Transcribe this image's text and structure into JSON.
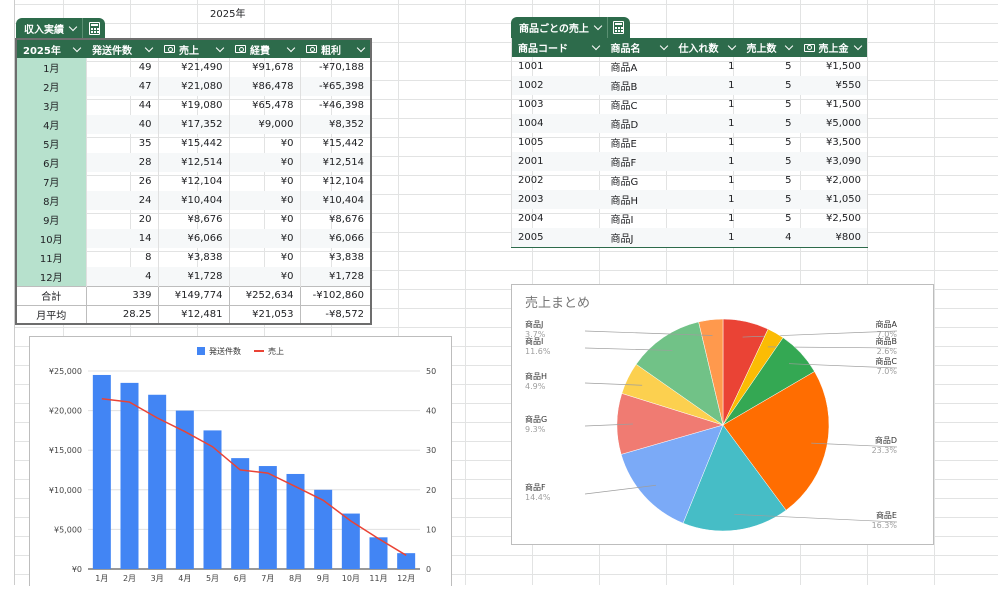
{
  "sheet": {
    "cell_caption": "2025年"
  },
  "table1": {
    "tab_label": "収入実績",
    "headers": [
      "2025年",
      "発送件数",
      "売上",
      "経費",
      "粗利"
    ],
    "rows": [
      [
        "1月",
        "49",
        "¥21,490",
        "¥91,678",
        "-¥70,188"
      ],
      [
        "2月",
        "47",
        "¥21,080",
        "¥86,478",
        "-¥65,398"
      ],
      [
        "3月",
        "44",
        "¥19,080",
        "¥65,478",
        "-¥46,398"
      ],
      [
        "4月",
        "40",
        "¥17,352",
        "¥9,000",
        "¥8,352"
      ],
      [
        "5月",
        "35",
        "¥15,442",
        "¥0",
        "¥15,442"
      ],
      [
        "6月",
        "28",
        "¥12,514",
        "¥0",
        "¥12,514"
      ],
      [
        "7月",
        "26",
        "¥12,104",
        "¥0",
        "¥12,104"
      ],
      [
        "8月",
        "24",
        "¥10,404",
        "¥0",
        "¥10,404"
      ],
      [
        "9月",
        "20",
        "¥8,676",
        "¥0",
        "¥8,676"
      ],
      [
        "10月",
        "14",
        "¥6,066",
        "¥0",
        "¥6,066"
      ],
      [
        "11月",
        "8",
        "¥3,838",
        "¥0",
        "¥3,838"
      ],
      [
        "12月",
        "4",
        "¥1,728",
        "¥0",
        "¥1,728"
      ]
    ],
    "footer": [
      [
        "合計",
        "339",
        "¥149,774",
        "¥252,634",
        "-¥102,860"
      ],
      [
        "月平均",
        "28.25",
        "¥12,481",
        "¥21,053",
        "-¥8,572"
      ]
    ]
  },
  "table2": {
    "tab_label": "商品ごとの売上",
    "headers": [
      "商品コード",
      "商品名",
      "仕入れ数",
      "売上数",
      "売上金"
    ],
    "rows": [
      [
        "1001",
        "商品A",
        "1",
        "5",
        "¥1,500"
      ],
      [
        "1002",
        "商品B",
        "1",
        "5",
        "¥550"
      ],
      [
        "1003",
        "商品C",
        "1",
        "5",
        "¥1,500"
      ],
      [
        "1004",
        "商品D",
        "1",
        "5",
        "¥5,000"
      ],
      [
        "1005",
        "商品E",
        "1",
        "5",
        "¥3,500"
      ],
      [
        "2001",
        "商品F",
        "1",
        "5",
        "¥3,090"
      ],
      [
        "2002",
        "商品G",
        "1",
        "5",
        "¥2,000"
      ],
      [
        "2003",
        "商品H",
        "1",
        "5",
        "¥1,050"
      ],
      [
        "2004",
        "商品I",
        "1",
        "5",
        "¥2,500"
      ],
      [
        "2005",
        "商品J",
        "1",
        "4",
        "¥800"
      ]
    ]
  },
  "chart_data": [
    {
      "type": "bar",
      "title": "",
      "categories": [
        "1月",
        "2月",
        "3月",
        "4月",
        "5月",
        "6月",
        "7月",
        "8月",
        "9月",
        "10月",
        "11月",
        "12月"
      ],
      "series": [
        {
          "name": "発送件数",
          "kind": "bar",
          "axis": "right",
          "color": "#4285f4",
          "values": [
            49,
            47,
            44,
            40,
            35,
            28,
            26,
            24,
            20,
            14,
            8,
            4
          ]
        },
        {
          "name": "売上",
          "kind": "line",
          "axis": "left",
          "color": "#ea4335",
          "values": [
            21490,
            21080,
            19080,
            17352,
            15442,
            12514,
            12104,
            10404,
            8676,
            6066,
            3838,
            1728
          ]
        }
      ],
      "y_left": {
        "min": 0,
        "max": 25000,
        "ticks": [
          "¥0",
          "¥5,000",
          "¥10,000",
          "¥15,000",
          "¥20,000",
          "¥25,000"
        ]
      },
      "y_right": {
        "min": 0,
        "max": 50,
        "ticks": [
          "0",
          "10",
          "20",
          "30",
          "40",
          "50"
        ]
      },
      "legend": "top",
      "grid": true
    },
    {
      "type": "pie",
      "title": "売上まとめ",
      "slices": [
        {
          "label": "商品A",
          "pct": "7.0%",
          "value": 7.0,
          "color": "#ea4335"
        },
        {
          "label": "商品B",
          "pct": "2.6%",
          "value": 2.6,
          "color": "#fbbc04"
        },
        {
          "label": "商品C",
          "pct": "7.0%",
          "value": 7.0,
          "color": "#34a853"
        },
        {
          "label": "商品D",
          "pct": "23.3%",
          "value": 23.3,
          "color": "#ff6d01"
        },
        {
          "label": "商品E",
          "pct": "16.3%",
          "value": 16.3,
          "color": "#46bdc6"
        },
        {
          "label": "商品F",
          "pct": "14.4%",
          "value": 14.4,
          "color": "#7baaf7"
        },
        {
          "label": "商品G",
          "pct": "9.3%",
          "value": 9.3,
          "color": "#f07b72"
        },
        {
          "label": "商品H",
          "pct": "4.9%",
          "value": 4.9,
          "color": "#fcd04f"
        },
        {
          "label": "商品I",
          "pct": "11.6%",
          "value": 11.6,
          "color": "#71c287"
        },
        {
          "label": "商品J",
          "pct": "3.7%",
          "value": 3.7,
          "color": "#ff994d"
        }
      ],
      "legend": "labels-outside"
    }
  ]
}
